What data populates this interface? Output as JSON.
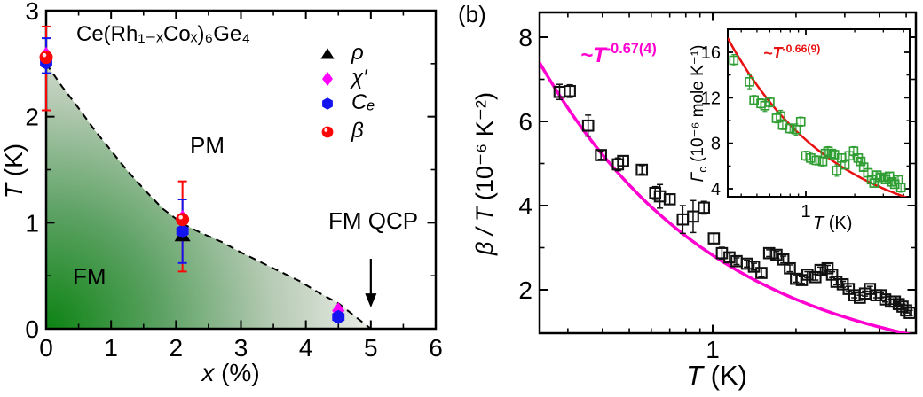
{
  "figure": {
    "panel_b_tag": "(b)",
    "background": "#ffffff"
  },
  "chart_data": [
    {
      "id": "panel_a_phase_diagram",
      "type": "scatter",
      "title": "Ce(Rh₁₋ₓCoₓ)₆Ge₄",
      "xlabel": {
        "it": "x",
        "up": " (%)"
      },
      "ylabel": {
        "it": "T",
        "up": " (K)"
      },
      "xlim": [
        0,
        6
      ],
      "ylim": [
        0,
        3
      ],
      "xticks": [
        0,
        1,
        2,
        3,
        4,
        5,
        6
      ],
      "xticks_minor": [
        0.5,
        1.5,
        2.5,
        3.5,
        4.5,
        5.5
      ],
      "yticks": [
        0,
        1,
        2,
        3
      ],
      "yticks_minor": [
        0.5,
        1.5,
        2.5
      ],
      "grid": false,
      "legend_position": "upper right",
      "annotations": [
        {
          "text": "PM",
          "x": 2.3,
          "y": 1.7
        },
        {
          "text": "FM",
          "x": 0.45,
          "y": 0.45
        },
        {
          "text": "FM QCP",
          "x": 4.9,
          "y": 1.05
        }
      ],
      "qcp_arrow": {
        "x": 5.0,
        "from_T": 0.66,
        "to_T": 0.2
      },
      "phase_boundary": [
        [
          0,
          2.5
        ],
        [
          0.25,
          2.28
        ],
        [
          0.5,
          2.08
        ],
        [
          0.75,
          1.87
        ],
        [
          1.0,
          1.68
        ],
        [
          1.25,
          1.49
        ],
        [
          1.5,
          1.32
        ],
        [
          1.8,
          1.13
        ],
        [
          2.1,
          0.99
        ],
        [
          2.4,
          0.9
        ],
        [
          2.7,
          0.82
        ],
        [
          3.0,
          0.72
        ],
        [
          3.3,
          0.63
        ],
        [
          3.6,
          0.54
        ],
        [
          3.9,
          0.45
        ],
        [
          4.2,
          0.34
        ],
        [
          4.5,
          0.24
        ],
        [
          4.75,
          0.12
        ],
        [
          5.0,
          0.0
        ]
      ],
      "region_gradient": [
        [
          "0",
          "#0c8312"
        ],
        [
          "0.3",
          "#5ba162"
        ],
        [
          "0.6",
          "#b7cbb5"
        ],
        [
          "0.85",
          "#e9ece5"
        ],
        [
          "1",
          "#f6f6f2"
        ]
      ],
      "series": [
        {
          "name": "ρ",
          "marker": "triangle",
          "color": "#000000",
          "points": [
            [
              2.1,
              0.88
            ]
          ],
          "bars": []
        },
        {
          "name": "χ′",
          "marker": "diamond",
          "color": "#ff00ff",
          "points": [
            [
              0,
              2.58
            ],
            [
              2.1,
              1.04
            ],
            [
              4.5,
              0.17
            ]
          ],
          "bars": []
        },
        {
          "name": "Cₑ",
          "marker": "hexagon",
          "color": "#1414f0",
          "points": [
            [
              0,
              2.51
            ],
            [
              2.1,
              0.92
            ],
            [
              4.5,
              0.11
            ]
          ],
          "bars": [
            {
              "x": 0,
              "lo": 2.41,
              "hi": 2.74
            },
            {
              "x": 2.1,
              "lo": 0.62,
              "hi": 1.22
            }
          ]
        },
        {
          "name": "β",
          "marker": "ball",
          "color": "#fb0707",
          "points": [
            [
              0,
              2.56
            ],
            [
              2.1,
              1.03
            ]
          ],
          "bars": [
            {
              "x": 0,
              "lo": 2.06,
              "hi": 2.85
            },
            {
              "x": 2.1,
              "lo": 0.54,
              "hi": 1.39
            }
          ]
        }
      ]
    },
    {
      "id": "panel_b_main",
      "type": "scatter",
      "xlabel": {
        "it": "T",
        "up": " (K)"
      },
      "ylabel": {
        "it": "β / T",
        "up": " (10⁻⁶ K⁻²)"
      },
      "xscale": "log",
      "xlim": [
        0.237,
        5.42
      ],
      "ylim": [
        0.97,
        8.59
      ],
      "xticks": [
        1
      ],
      "xticks_minor": [
        0.3,
        0.4,
        0.5,
        0.6,
        0.7,
        0.8,
        0.9,
        2,
        3,
        4,
        5
      ],
      "yticks": [
        2,
        4,
        6,
        8
      ],
      "yticks_minor": [
        3,
        5,
        7
      ],
      "grid": false,
      "fit": {
        "form": "power_law",
        "label_base": "~T",
        "label_exp": "-0.67(4)",
        "amplitude": 2.82,
        "exponent": -0.67,
        "color": "#ff00d0"
      },
      "series": [
        {
          "name": "β/T",
          "marker": "open-square",
          "color": "#111111",
          "points": [
            [
              0.28,
              6.7,
              0.18
            ],
            [
              0.305,
              6.72,
              0.15
            ],
            [
              0.355,
              5.9,
              0.25
            ],
            [
              0.395,
              5.2,
              0.1
            ],
            [
              0.455,
              4.98,
              0.15
            ],
            [
              0.475,
              5.06,
              0.12
            ],
            [
              0.555,
              4.85,
              0.1
            ],
            [
              0.62,
              4.3,
              0.15
            ],
            [
              0.645,
              4.22,
              0.28
            ],
            [
              0.7,
              4.15,
              0.12
            ],
            [
              0.78,
              3.67,
              0.33
            ],
            [
              0.85,
              3.74,
              0.38
            ],
            [
              0.93,
              3.95,
              0.15
            ],
            [
              1.01,
              3.22,
              0.12
            ],
            [
              1.08,
              2.87,
              0.14
            ],
            [
              1.15,
              2.77,
              0.1
            ],
            [
              1.22,
              2.68,
              0.08
            ],
            [
              1.33,
              2.62,
              0.08
            ],
            [
              1.41,
              2.55,
              0.08
            ],
            [
              1.5,
              2.4,
              0.1
            ],
            [
              1.6,
              2.87,
              0.08
            ],
            [
              1.7,
              2.83,
              0.08
            ],
            [
              1.8,
              2.72,
              0.08
            ],
            [
              1.9,
              2.51,
              0.08
            ],
            [
              2.0,
              2.26,
              0.08
            ],
            [
              2.1,
              2.23,
              0.08
            ],
            [
              2.2,
              2.36,
              0.07
            ],
            [
              2.35,
              2.3,
              0.07
            ],
            [
              2.45,
              2.47,
              0.07
            ],
            [
              2.6,
              2.51,
              0.07
            ],
            [
              2.7,
              2.36,
              0.07
            ],
            [
              2.8,
              2.19,
              0.07
            ],
            [
              2.95,
              2.13,
              0.07
            ],
            [
              3.1,
              2.02,
              0.06
            ],
            [
              3.25,
              1.87,
              0.06
            ],
            [
              3.4,
              1.81,
              0.06
            ],
            [
              3.55,
              1.91,
              0.06
            ],
            [
              3.7,
              2.02,
              0.06
            ],
            [
              3.9,
              1.87,
              0.06
            ],
            [
              4.05,
              1.87,
              0.06
            ],
            [
              4.2,
              1.77,
              0.06
            ],
            [
              4.4,
              1.72,
              0.06
            ],
            [
              4.55,
              1.72,
              0.06
            ],
            [
              4.7,
              1.66,
              0.06
            ],
            [
              4.85,
              1.6,
              0.06
            ],
            [
              5.0,
              1.51,
              0.06
            ],
            [
              5.15,
              1.45,
              0.06
            ]
          ]
        }
      ]
    },
    {
      "id": "panel_b_inset",
      "type": "scatter",
      "xlabel": {
        "it": "T",
        "up": " (K)"
      },
      "ylabel": {
        "it": "Γ",
        "sub": "c",
        "up": " (10⁻⁶ mole K⁻¹)"
      },
      "xscale": "log",
      "xlim": [
        0.33,
        4.36
      ],
      "ylim": [
        3.3,
        18.0
      ],
      "xticks": [
        1
      ],
      "xticks_minor": [
        0.4,
        0.5,
        0.6,
        0.7,
        0.8,
        0.9,
        2,
        3,
        4
      ],
      "yticks": [
        4,
        8,
        12,
        16
      ],
      "yticks_minor": [
        6,
        10,
        14,
        18
      ],
      "grid": false,
      "fit": {
        "form": "power_law",
        "label_base": "~T",
        "label_exp": "-0.66(9)",
        "amplitude": 8.3,
        "exponent": -0.66,
        "color": "#e81111"
      },
      "series": [
        {
          "name": "Γc",
          "marker": "open-square",
          "color": "#2f9e33",
          "points": [
            [
              0.36,
              15.3,
              0.5
            ],
            [
              0.45,
              13.4,
              0.6
            ],
            [
              0.48,
              11.8,
              0.4
            ],
            [
              0.53,
              11.5,
              0.4
            ],
            [
              0.56,
              11.3,
              0.5
            ],
            [
              0.6,
              11.6,
              0.4
            ],
            [
              0.66,
              10.2,
              0.4
            ],
            [
              0.7,
              10.4,
              0.5
            ],
            [
              0.72,
              9.6,
              0.4
            ],
            [
              0.8,
              9.3,
              0.4
            ],
            [
              0.87,
              9.2,
              0.5
            ],
            [
              0.93,
              9.9,
              0.4
            ],
            [
              1.0,
              6.9,
              0.4
            ],
            [
              1.07,
              6.7,
              0.5
            ],
            [
              1.16,
              6.5,
              0.4
            ],
            [
              1.27,
              6.4,
              0.4
            ],
            [
              1.32,
              7.1,
              0.4
            ],
            [
              1.37,
              7.3,
              0.4
            ],
            [
              1.44,
              7.1,
              0.35
            ],
            [
              1.5,
              7.0,
              0.35
            ],
            [
              1.55,
              5.6,
              0.5
            ],
            [
              1.66,
              6.7,
              0.35
            ],
            [
              1.74,
              6.1,
              0.35
            ],
            [
              1.85,
              6.9,
              0.35
            ],
            [
              1.97,
              7.3,
              0.4
            ],
            [
              2.1,
              6.7,
              0.35
            ],
            [
              2.18,
              6.4,
              0.3
            ],
            [
              2.27,
              5.9,
              0.3
            ],
            [
              2.41,
              5.4,
              0.35
            ],
            [
              2.54,
              4.8,
              0.3
            ],
            [
              2.63,
              4.5,
              0.35
            ],
            [
              2.74,
              5.2,
              0.3
            ],
            [
              2.87,
              5.0,
              0.3
            ],
            [
              3.0,
              5.0,
              0.3
            ],
            [
              3.1,
              4.8,
              0.3
            ],
            [
              3.27,
              5.1,
              0.3
            ],
            [
              3.4,
              4.6,
              0.3
            ],
            [
              3.53,
              4.4,
              0.35
            ],
            [
              3.7,
              4.8,
              0.3
            ],
            [
              3.85,
              4.1,
              0.4
            ]
          ]
        }
      ]
    }
  ]
}
